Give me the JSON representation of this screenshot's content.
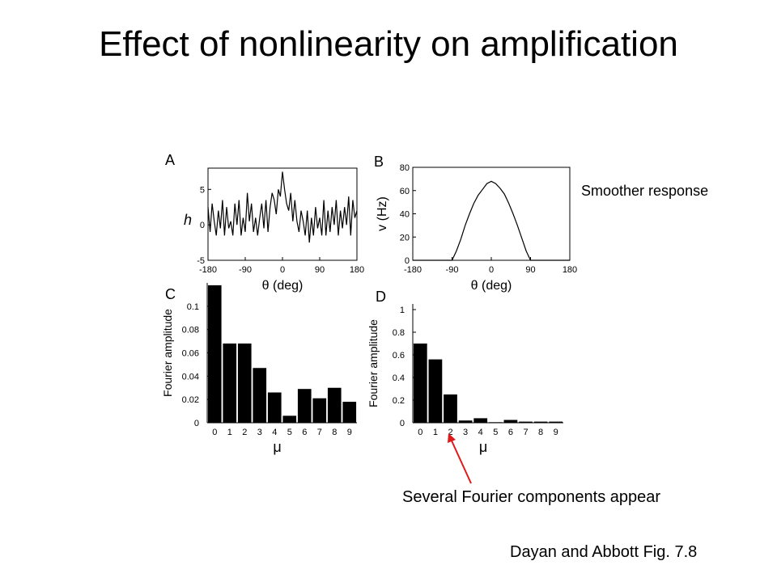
{
  "slide": {
    "title": "Effect of nonlinearity on amplification",
    "note_smoother": "Smoother response",
    "note_fourier": "Several Fourier components appear",
    "citation": "Dayan and Abbott Fig. 7.8"
  },
  "colors": {
    "ink": "#000000",
    "arrow": "#e0191b",
    "background": "#ffffff"
  },
  "chart_data": [
    {
      "panel": "A",
      "type": "line",
      "xlabel": "θ (deg)",
      "ylabel": "h",
      "xlim": [
        -180,
        180
      ],
      "ylim": [
        -5,
        8
      ],
      "xticks": [
        -180,
        -90,
        0,
        90,
        180
      ],
      "yticks": [
        -5,
        0,
        5
      ],
      "x": [
        -180,
        -175,
        -170,
        -165,
        -160,
        -155,
        -150,
        -145,
        -140,
        -135,
        -130,
        -125,
        -120,
        -115,
        -110,
        -105,
        -100,
        -95,
        -90,
        -85,
        -80,
        -75,
        -70,
        -65,
        -60,
        -55,
        -50,
        -45,
        -40,
        -35,
        -30,
        -25,
        -20,
        -15,
        -10,
        -5,
        0,
        5,
        10,
        15,
        20,
        25,
        30,
        35,
        40,
        45,
        50,
        55,
        60,
        65,
        70,
        75,
        80,
        85,
        90,
        95,
        100,
        105,
        110,
        115,
        120,
        125,
        130,
        135,
        140,
        145,
        150,
        155,
        160,
        165,
        170,
        175,
        180
      ],
      "y": [
        2.5,
        -1.0,
        3.0,
        0.5,
        -1.5,
        2.0,
        -0.5,
        3.5,
        -1.5,
        2.5,
        -0.5,
        0.5,
        -1.5,
        3.0,
        0.0,
        3.5,
        -1.5,
        1.0,
        -1.0,
        4.5,
        0.5,
        3.0,
        -1.0,
        1.0,
        -1.5,
        1.0,
        3.0,
        -0.5,
        3.5,
        -1.0,
        2.5,
        4.5,
        3.5,
        1.5,
        5.0,
        4.0,
        7.5,
        5.0,
        3.0,
        2.0,
        4.5,
        0.5,
        3.5,
        0.5,
        -1.0,
        2.0,
        0.5,
        -1.5,
        2.0,
        -2.5,
        1.0,
        -1.5,
        2.5,
        -0.5,
        1.0,
        -1.5,
        3.5,
        -1.5,
        2.0,
        -1.0,
        2.5,
        0.0,
        3.5,
        -1.5,
        2.0,
        -0.5,
        2.5,
        0.0,
        4.0,
        -1.5,
        3.5,
        1.0,
        2.0
      ]
    },
    {
      "panel": "B",
      "type": "line",
      "xlabel": "θ (deg)",
      "ylabel": "v (Hz)",
      "xlim": [
        -180,
        180
      ],
      "ylim": [
        0,
        80
      ],
      "xticks": [
        -180,
        -90,
        0,
        90,
        180
      ],
      "yticks": [
        0,
        20,
        40,
        60,
        80
      ],
      "x": [
        -180,
        -90,
        -80,
        -70,
        -60,
        -50,
        -40,
        -30,
        -20,
        -10,
        0,
        10,
        20,
        30,
        40,
        50,
        60,
        70,
        80,
        90,
        180
      ],
      "y": [
        0,
        0,
        8,
        18,
        30,
        40,
        49,
        56,
        61,
        66,
        68,
        66,
        62,
        57,
        49,
        40,
        30,
        19,
        8,
        0,
        0
      ]
    },
    {
      "panel": "C",
      "type": "bar",
      "xlabel": "μ",
      "ylabel": "Fourier amplitude",
      "ylim": [
        0,
        0.12
      ],
      "yticks": [
        "0",
        "0.02",
        "0.04",
        "0.06",
        "0.08",
        "0.1"
      ],
      "categories": [
        "0",
        "1",
        "2",
        "3",
        "4",
        "5",
        "6",
        "7",
        "8",
        "9"
      ],
      "values": [
        0.118,
        0.068,
        0.068,
        0.047,
        0.026,
        0.006,
        0.029,
        0.021,
        0.03,
        0.018
      ]
    },
    {
      "panel": "D",
      "type": "bar",
      "xlabel": "μ",
      "ylabel": "Fourier amplitude",
      "ylim": [
        0,
        1.05
      ],
      "yticks": [
        "0",
        "0.2",
        "0.4",
        "0.6",
        "0.8",
        "1"
      ],
      "categories": [
        "0",
        "1",
        "2",
        "3",
        "4",
        "5",
        "6",
        "7",
        "8",
        "9"
      ],
      "values": [
        0.7,
        0.56,
        0.25,
        0.02,
        0.04,
        0.005,
        0.025,
        0.01,
        0.01,
        0.01
      ]
    }
  ]
}
